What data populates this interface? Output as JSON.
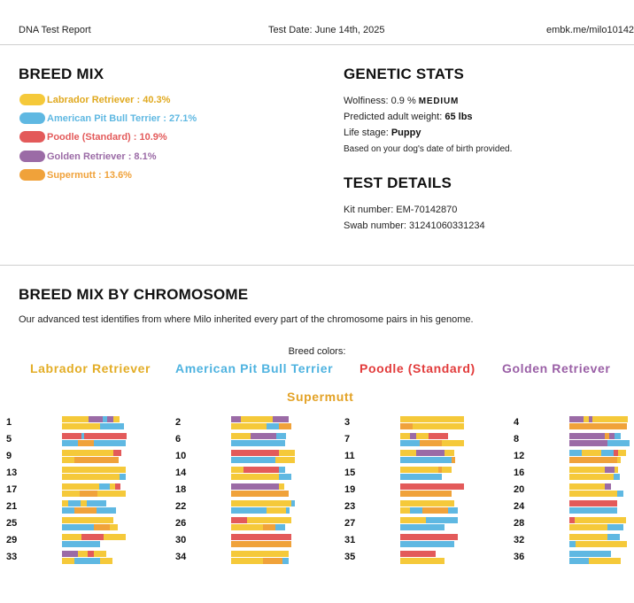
{
  "header": {
    "left": "DNA Test Report",
    "date": "Test Date: June 14th, 2025",
    "link": "embk.me/milo10142870"
  },
  "breed_mix": {
    "title": "BREED MIX",
    "items": [
      {
        "label": "Labrador Retriever : 40.3%",
        "color": "#f5c93a"
      },
      {
        "label": "American Pit Bull Terrier : 27.1%",
        "color": "#5fb8e2"
      },
      {
        "label": "Poodle (Standard) : 10.9%",
        "color": "#e35a5a"
      },
      {
        "label": "Golden Retriever : 8.1%",
        "color": "#9b6ba6"
      },
      {
        "label": "Supermutt : 13.6%",
        "color": "#f0a23a"
      }
    ]
  },
  "genetic_stats": {
    "title": "GENETIC STATS",
    "wolfiness_label": "Wolfiness: 0.9 %",
    "wolfiness_level": "MEDIUM",
    "weight_label": "Predicted adult weight:",
    "weight_value": "65 lbs",
    "life_label": "Life stage:",
    "life_value": "Puppy",
    "life_note": "Based on your dog's date of birth provided."
  },
  "test_details": {
    "title": "TEST DETAILS",
    "kit": "Kit number: EM-70142870",
    "swab": "Swab number: 31241060331234"
  },
  "chromosome": {
    "title": "BREED MIX BY CHROMOSOME",
    "subtitle": "Our advanced test identifies from where Milo inherited every part of the chromosome pairs in his genome.",
    "colors_title": "Breed colors:",
    "legend": [
      {
        "label": "Labrador Retriever",
        "color": "#e3ad26"
      },
      {
        "label": "American Pit Bull Terrier",
        "color": "#4fb3e0"
      },
      {
        "label": "Poodle (Standard)",
        "color": "#e23b3b"
      },
      {
        "label": "Golden Retriever",
        "color": "#9a5fa6"
      },
      {
        "label": "Supermutt",
        "color": "#e3a226"
      }
    ],
    "palette": {
      "L": "#f5c93a",
      "A": "#5fb8e2",
      "P": "#e35a5a",
      "G": "#9b6ba6",
      "S": "#f0a23a"
    },
    "pairs": [
      {
        "n": "1",
        "a": [
          [
            "L",
            0.42
          ],
          [
            "G",
            0.22
          ],
          [
            "A",
            0.07
          ],
          [
            "G",
            0.1
          ],
          [
            "L",
            0.1
          ]
        ],
        "b": [
          [
            "L",
            0.6
          ],
          [
            "A",
            0.38
          ]
        ]
      },
      {
        "n": "2",
        "a": [
          [
            "G",
            0.15
          ],
          [
            "L",
            0.5
          ],
          [
            "G",
            0.25
          ]
        ],
        "b": [
          [
            "L",
            0.55
          ],
          [
            "A",
            0.2
          ],
          [
            "S",
            0.2
          ]
        ]
      },
      {
        "n": "3",
        "a": [
          [
            "L",
            1.0
          ]
        ],
        "b": [
          [
            "S",
            0.2
          ],
          [
            "L",
            0.8
          ]
        ]
      },
      {
        "n": "4",
        "a": [
          [
            "G",
            0.22
          ],
          [
            "L",
            0.08
          ],
          [
            "G",
            0.05
          ],
          [
            "L",
            0.55
          ]
        ],
        "b": [
          [
            "S",
            0.9
          ]
        ]
      },
      {
        "n": "5",
        "a": [
          [
            "P",
            0.3
          ],
          [
            "A",
            0.04
          ],
          [
            "P",
            0.66
          ]
        ],
        "b": [
          [
            "A",
            0.25
          ],
          [
            "S",
            0.25
          ],
          [
            "A",
            0.5
          ]
        ]
      },
      {
        "n": "6",
        "a": [
          [
            "L",
            0.3
          ],
          [
            "G",
            0.4
          ],
          [
            "A",
            0.15
          ]
        ],
        "b": [
          [
            "A",
            0.85
          ]
        ]
      },
      {
        "n": "7",
        "a": [
          [
            "L",
            0.15
          ],
          [
            "G",
            0.1
          ],
          [
            "L",
            0.2
          ],
          [
            "P",
            0.3
          ]
        ],
        "b": [
          [
            "A",
            0.3
          ],
          [
            "S",
            0.35
          ],
          [
            "L",
            0.35
          ]
        ]
      },
      {
        "n": "8",
        "a": [
          [
            "G",
            0.55
          ],
          [
            "S",
            0.07
          ],
          [
            "G",
            0.08
          ],
          [
            "A",
            0.1
          ]
        ],
        "b": [
          [
            "G",
            0.6
          ],
          [
            "A",
            0.35
          ]
        ]
      },
      {
        "n": "9",
        "a": [
          [
            "L",
            0.8
          ],
          [
            "P",
            0.12
          ]
        ],
        "b": [
          [
            "L",
            0.2
          ],
          [
            "S",
            0.7
          ]
        ]
      },
      {
        "n": "10",
        "a": [
          [
            "P",
            0.75
          ],
          [
            "L",
            0.25
          ]
        ],
        "b": [
          [
            "A",
            0.7
          ],
          [
            "L",
            0.3
          ]
        ]
      },
      {
        "n": "11",
        "a": [
          [
            "L",
            0.25
          ],
          [
            "G",
            0.45
          ],
          [
            "L",
            0.15
          ]
        ],
        "b": [
          [
            "A",
            0.8
          ],
          [
            "S",
            0.05
          ]
        ]
      },
      {
        "n": "12",
        "a": [
          [
            "A",
            0.2
          ],
          [
            "L",
            0.3
          ],
          [
            "A",
            0.2
          ],
          [
            "P",
            0.07
          ],
          [
            "L",
            0.13
          ]
        ],
        "b": [
          [
            "S",
            0.75
          ],
          [
            "L",
            0.05
          ]
        ]
      },
      {
        "n": "13",
        "a": [
          [
            "L",
            1.0
          ]
        ],
        "b": [
          [
            "L",
            0.9
          ],
          [
            "A",
            0.1
          ]
        ]
      },
      {
        "n": "14",
        "a": [
          [
            "L",
            0.2
          ],
          [
            "P",
            0.55
          ],
          [
            "A",
            0.1
          ]
        ],
        "b": [
          [
            "L",
            0.75
          ],
          [
            "A",
            0.2
          ]
        ]
      },
      {
        "n": "15",
        "a": [
          [
            "L",
            0.6
          ],
          [
            "S",
            0.05
          ],
          [
            "L",
            0.15
          ]
        ],
        "b": [
          [
            "A",
            0.65
          ]
        ]
      },
      {
        "n": "16",
        "a": [
          [
            "L",
            0.55
          ],
          [
            "G",
            0.15
          ],
          [
            "L",
            0.05
          ]
        ],
        "b": [
          [
            "L",
            0.7
          ],
          [
            "A",
            0.1
          ]
        ]
      },
      {
        "n": "17",
        "a": [
          [
            "L",
            0.58
          ],
          [
            "A",
            0.16
          ],
          [
            "L",
            0.08
          ],
          [
            "P",
            0.08
          ]
        ],
        "b": [
          [
            "L",
            0.28
          ],
          [
            "S",
            0.28
          ],
          [
            "L",
            0.44
          ]
        ]
      },
      {
        "n": "18",
        "a": [
          [
            "G",
            0.75
          ],
          [
            "L",
            0.08
          ]
        ],
        "b": [
          [
            "S",
            0.9
          ]
        ]
      },
      {
        "n": "19",
        "a": [
          [
            "P",
            1.0
          ]
        ],
        "b": [
          [
            "S",
            0.8
          ]
        ]
      },
      {
        "n": "20",
        "a": [
          [
            "L",
            0.55
          ],
          [
            "G",
            0.1
          ]
        ],
        "b": [
          [
            "L",
            0.75
          ],
          [
            "A",
            0.1
          ]
        ]
      },
      {
        "n": "21",
        "a": [
          [
            "L",
            0.1
          ],
          [
            "A",
            0.2
          ],
          [
            "L",
            0.1
          ],
          [
            "A",
            0.3
          ]
        ],
        "b": [
          [
            "A",
            0.2
          ],
          [
            "S",
            0.35
          ],
          [
            "A",
            0.3
          ]
        ]
      },
      {
        "n": "22",
        "a": [
          [
            "L",
            0.95
          ],
          [
            "A",
            0.05
          ]
        ],
        "b": [
          [
            "A",
            0.55
          ],
          [
            "L",
            0.3
          ],
          [
            "A",
            0.05
          ]
        ]
      },
      {
        "n": "23",
        "a": [
          [
            "L",
            0.85
          ]
        ],
        "b": [
          [
            "L",
            0.15
          ],
          [
            "A",
            0.2
          ],
          [
            "S",
            0.4
          ],
          [
            "A",
            0.15
          ]
        ]
      },
      {
        "n": "24",
        "a": [
          [
            "P",
            0.75
          ]
        ],
        "b": [
          [
            "A",
            0.75
          ]
        ]
      },
      {
        "n": "25",
        "a": [
          [
            "L",
            0.8
          ]
        ],
        "b": [
          [
            "A",
            0.5
          ],
          [
            "S",
            0.25
          ],
          [
            "L",
            0.12
          ]
        ]
      },
      {
        "n": "26",
        "a": [
          [
            "P",
            0.25
          ],
          [
            "L",
            0.7
          ]
        ],
        "b": [
          [
            "L",
            0.5
          ],
          [
            "S",
            0.2
          ],
          [
            "A",
            0.15
          ]
        ]
      },
      {
        "n": "27",
        "a": [
          [
            "L",
            0.4
          ],
          [
            "A",
            0.5
          ]
        ],
        "b": [
          [
            "A",
            0.7
          ]
        ]
      },
      {
        "n": "28",
        "a": [
          [
            "P",
            0.08
          ],
          [
            "L",
            0.8
          ]
        ],
        "b": [
          [
            "L",
            0.6
          ],
          [
            "A",
            0.25
          ]
        ]
      },
      {
        "n": "29",
        "a": [
          [
            "L",
            0.3
          ],
          [
            "P",
            0.35
          ],
          [
            "L",
            0.35
          ]
        ],
        "b": [
          [
            "A",
            0.6
          ]
        ]
      },
      {
        "n": "30",
        "a": [
          [
            "P",
            0.95
          ]
        ],
        "b": [
          [
            "S",
            0.95
          ]
        ]
      },
      {
        "n": "31",
        "a": [
          [
            "P",
            0.9
          ]
        ],
        "b": [
          [
            "A",
            0.85
          ]
        ]
      },
      {
        "n": "32",
        "a": [
          [
            "L",
            0.6
          ],
          [
            "A",
            0.2
          ]
        ],
        "b": [
          [
            "A",
            0.1
          ],
          [
            "L",
            0.8
          ]
        ]
      },
      {
        "n": "33",
        "a": [
          [
            "G",
            0.25
          ],
          [
            "L",
            0.15
          ],
          [
            "P",
            0.1
          ],
          [
            "L",
            0.2
          ]
        ],
        "b": [
          [
            "L",
            0.2
          ],
          [
            "A",
            0.4
          ],
          [
            "L",
            0.2
          ]
        ]
      },
      {
        "n": "34",
        "a": [
          [
            "L",
            0.9
          ]
        ],
        "b": [
          [
            "L",
            0.5
          ],
          [
            "S",
            0.3
          ],
          [
            "A",
            0.1
          ]
        ]
      },
      {
        "n": "35",
        "a": [
          [
            "P",
            0.55
          ]
        ],
        "b": [
          [
            "L",
            0.7
          ]
        ]
      },
      {
        "n": "36",
        "a": [
          [
            "A",
            0.65
          ]
        ],
        "b": [
          [
            "A",
            0.3
          ],
          [
            "L",
            0.5
          ]
        ]
      }
    ]
  }
}
